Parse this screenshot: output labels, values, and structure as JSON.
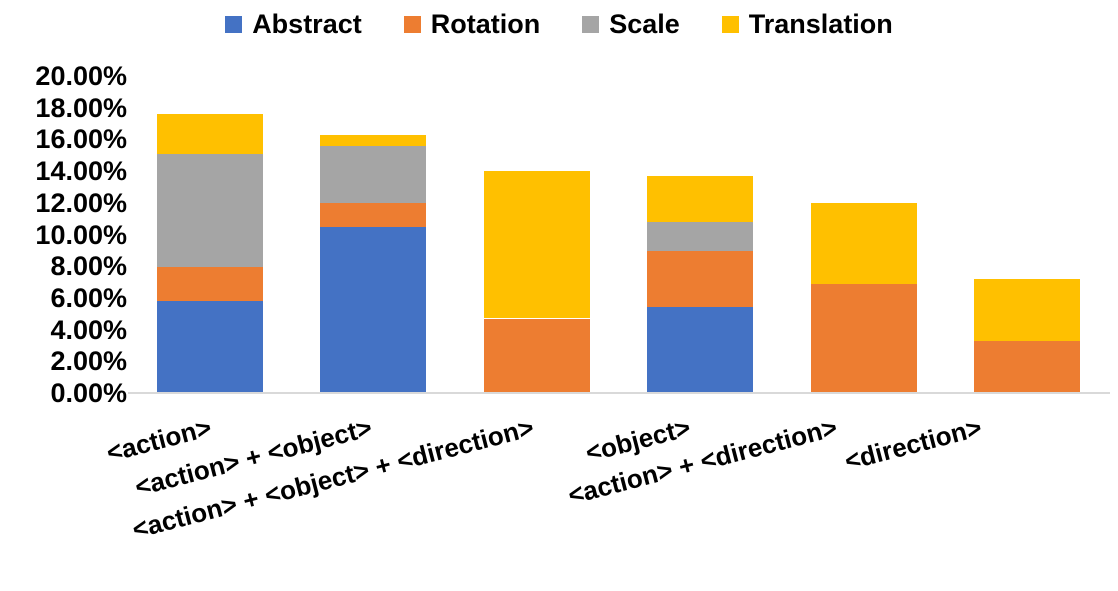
{
  "chart_data": {
    "type": "bar",
    "stacked": true,
    "title": "",
    "xlabel": "",
    "ylabel": "",
    "categories": [
      "<action>",
      "<action> + <object>",
      "<action> + <object> + <direction>",
      "<object>",
      "<action> + <direction>",
      "<direction>"
    ],
    "series": [
      {
        "name": "Abstract",
        "color": "#4472C4",
        "values": [
          5.8,
          10.5,
          0,
          5.4,
          0,
          0
        ]
      },
      {
        "name": "Rotation",
        "color": "#ED7D31",
        "values": [
          2.2,
          1.5,
          4.7,
          3.6,
          6.9,
          3.3
        ]
      },
      {
        "name": "Scale",
        "color": "#A5A5A5",
        "values": [
          7.1,
          3.6,
          0,
          1.8,
          0,
          0
        ]
      },
      {
        "name": "Translation",
        "color": "#FFC000",
        "values": [
          2.5,
          0.7,
          9.3,
          2.9,
          5.1,
          3.9
        ]
      }
    ],
    "ylim": [
      0,
      20
    ],
    "ytick_step": 2,
    "ytick_labels": [
      "0.00%",
      "2.00%",
      "4.00%",
      "6.00%",
      "8.00%",
      "10.00%",
      "12.00%",
      "14.00%",
      "16.00%",
      "18.00%",
      "20.00%"
    ],
    "legend_position": "top",
    "grid": false,
    "axis_line_color": "#D9D9D9",
    "text_color": "#000000",
    "background_color": "#FFFFFF"
  }
}
